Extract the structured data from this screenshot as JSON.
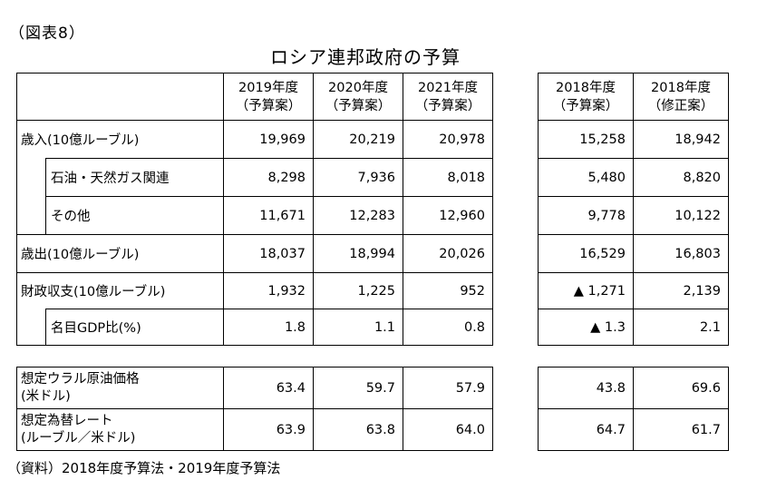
{
  "figure_label": "（図表8）",
  "title": "ロシア連邦政府の予算",
  "left_table": {
    "columns": [
      {
        "year": "2019年度",
        "kind": "（予算案）"
      },
      {
        "year": "2020年度",
        "kind": "（予算案）"
      },
      {
        "year": "2021年度",
        "kind": "（予算案）"
      }
    ],
    "rows": [
      {
        "label": "歳入(10億ルーブル)",
        "values": [
          "19,969",
          "20,219",
          "20,978"
        ]
      },
      {
        "label": "石油・天然ガス関連",
        "values": [
          "8,298",
          "7,936",
          "8,018"
        ]
      },
      {
        "label": "その他",
        "values": [
          "11,671",
          "12,283",
          "12,960"
        ]
      },
      {
        "label": "歳出(10億ルーブル)",
        "values": [
          "18,037",
          "18,994",
          "20,026"
        ]
      },
      {
        "label": "財政収支(10億ルーブル)",
        "values": [
          "1,932",
          "1,225",
          "952"
        ]
      },
      {
        "label": "名目GDP比(%)",
        "values": [
          "1.8",
          "1.1",
          "0.8"
        ]
      }
    ],
    "assumptions": [
      {
        "label_line1": "想定ウラル原油価格",
        "label_line2": "(米ドル)",
        "values": [
          "63.4",
          "59.7",
          "57.9"
        ]
      },
      {
        "label_line1": "想定為替レート",
        "label_line2": "(ルーブル／米ドル)",
        "values": [
          "63.9",
          "63.8",
          "64.0"
        ]
      }
    ]
  },
  "right_table": {
    "columns": [
      {
        "year": "2018年度",
        "kind": "（予算案）"
      },
      {
        "year": "2018年度",
        "kind": "（修正案）"
      }
    ],
    "rows": [
      [
        "15,258",
        "18,942"
      ],
      [
        "5,480",
        "8,820"
      ],
      [
        "9,778",
        "10,122"
      ],
      [
        "16,529",
        "16,803"
      ],
      [
        "▲ 1,271",
        "2,139"
      ],
      [
        "▲ 1.3",
        "2.1"
      ]
    ],
    "assumptions": [
      [
        "43.8",
        "69.6"
      ],
      [
        "64.7",
        "61.7"
      ]
    ]
  },
  "source": "（資料）2018年度予算法・2019年度予算法"
}
